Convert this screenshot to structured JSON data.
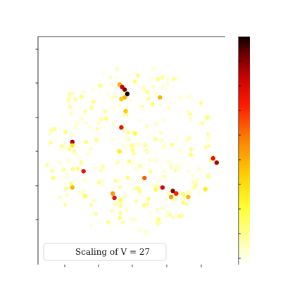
{
  "chart_data": {
    "type": "scatter",
    "title": "",
    "xlabel": "",
    "ylabel": "",
    "legend": {
      "text": "Scaling of V = 27",
      "placement": "lower-left"
    },
    "colormap": "hot_r",
    "colorbar": {
      "ticks_shown": false
    },
    "grid": false,
    "xlim": [
      -1.0,
      1.0
    ],
    "ylim": [
      -1.0,
      1.0
    ],
    "highlight_points": [
      {
        "x": -0.14,
        "y": 0.77,
        "v": 0.45
      },
      {
        "x": -0.11,
        "y": 0.74,
        "v": 0.8
      },
      {
        "x": -0.08,
        "y": 0.71,
        "v": 0.9
      },
      {
        "x": -0.05,
        "y": 0.66,
        "v": 1.0
      },
      {
        "x": -0.08,
        "y": 0.62,
        "v": 0.45
      },
      {
        "x": -0.12,
        "y": 0.6,
        "v": 0.4
      },
      {
        "x": 0.33,
        "y": 0.62,
        "v": 0.45
      },
      {
        "x": -0.07,
        "y": 0.46,
        "v": 0.4
      },
      {
        "x": -0.12,
        "y": 0.27,
        "v": 0.75
      },
      {
        "x": 0.04,
        "y": 0.2,
        "v": 0.25
      },
      {
        "x": -0.69,
        "y": 0.1,
        "v": 0.85
      },
      {
        "x": -0.69,
        "y": 0.06,
        "v": 0.3
      },
      {
        "x": -0.14,
        "y": -0.01,
        "v": 0.3
      },
      {
        "x": -0.56,
        "y": -0.24,
        "v": 0.75
      },
      {
        "x": 0.95,
        "y": -0.09,
        "v": 0.75
      },
      {
        "x": 0.99,
        "y": -0.14,
        "v": 0.85
      },
      {
        "x": 0.15,
        "y": -0.32,
        "v": 0.6
      },
      {
        "x": 0.36,
        "y": -0.43,
        "v": 0.8
      },
      {
        "x": 0.48,
        "y": -0.47,
        "v": 0.9
      },
      {
        "x": 0.52,
        "y": -0.5,
        "v": 0.7
      },
      {
        "x": 0.46,
        "y": -0.54,
        "v": 0.5
      },
      {
        "x": 0.66,
        "y": -0.54,
        "v": 0.45
      },
      {
        "x": -0.69,
        "y": -0.43,
        "v": 0.45
      },
      {
        "x": -0.22,
        "y": -0.5,
        "v": 0.5
      },
      {
        "x": -0.2,
        "y": -0.55,
        "v": 0.75
      },
      {
        "x": 0.28,
        "y": -0.45,
        "v": 0.2
      },
      {
        "x": 0.6,
        "y": -0.51,
        "v": 0.2
      },
      {
        "x": 0.86,
        "y": -0.45,
        "v": 0.3
      },
      {
        "x": -0.54,
        "y": -0.53,
        "v": 0.2
      },
      {
        "x": -0.13,
        "y": -0.58,
        "v": 0.2
      }
    ],
    "background_points": {
      "description_values": "pale yellow scatter covering a disc of radius about 1",
      "v_range": [
        0.0,
        0.08
      ]
    }
  },
  "legend_text": "Scaling of V = 27",
  "colors": {
    "axes_edge": "#000000",
    "legend_edge": "#cccccc",
    "colormap_stops": [
      "#ffffff",
      "#ffff33",
      "#ffcc00",
      "#ff8000",
      "#ff1a00",
      "#cc0000",
      "#660000",
      "#0b0000"
    ]
  }
}
